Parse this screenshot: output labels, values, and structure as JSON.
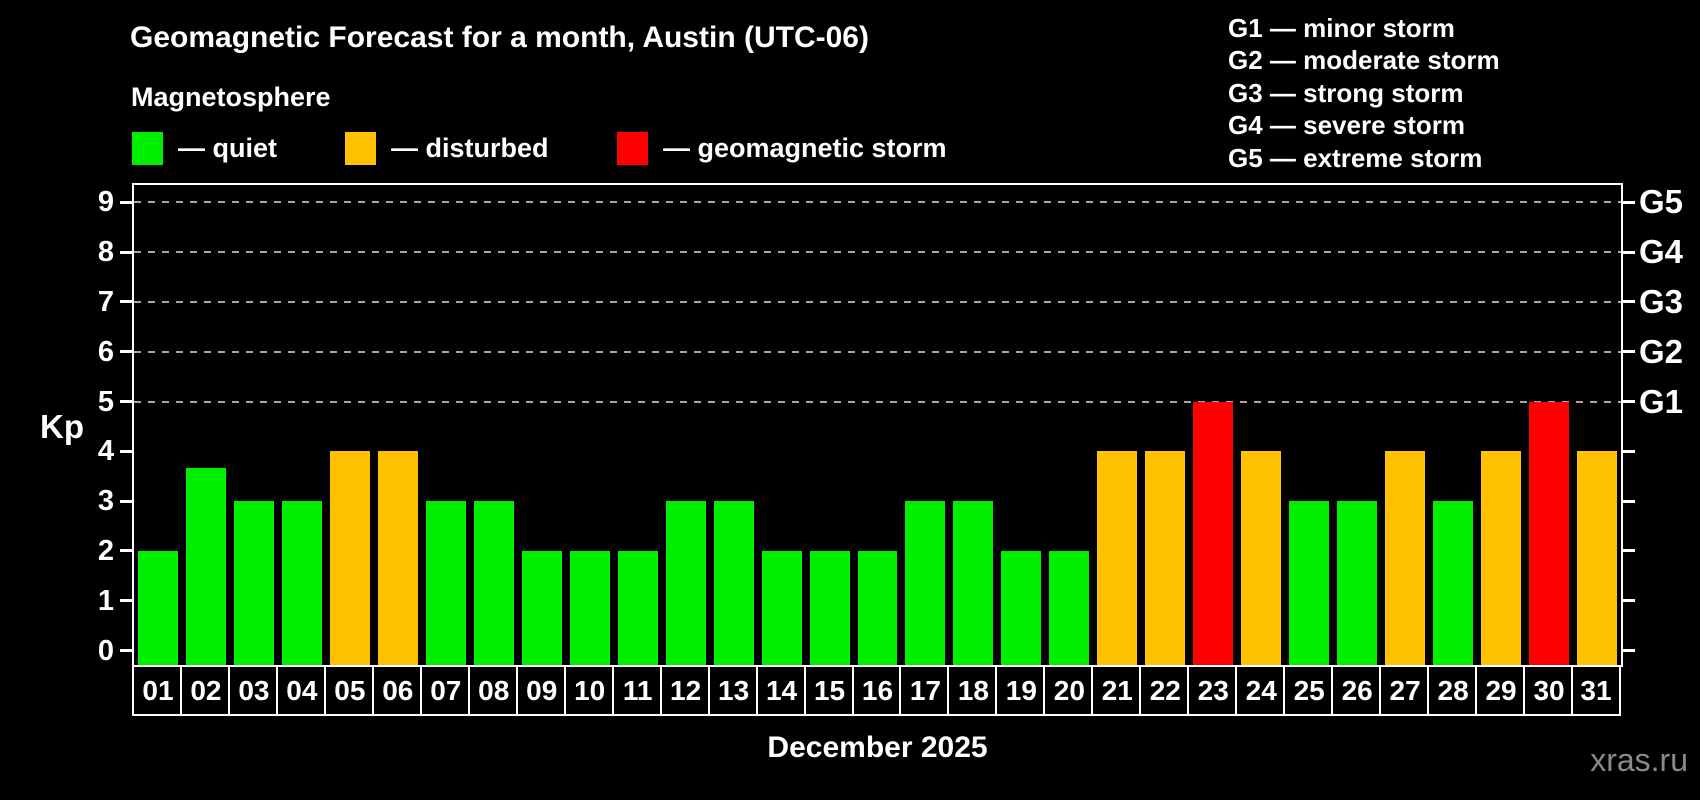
{
  "title": "Geomagnetic Forecast for a month, Austin (UTC-06)",
  "subtitle": "Magnetosphere",
  "legend": {
    "items": [
      {
        "name": "quiet",
        "label": "— quiet",
        "color": "#00ee00"
      },
      {
        "name": "disturbed",
        "label": "— disturbed",
        "color": "#ffc000"
      },
      {
        "name": "storm",
        "label": "— geomagnetic storm",
        "color": "#ff0000"
      }
    ]
  },
  "storm_scale_legend": [
    "G1 — minor storm",
    "G2 — moderate storm",
    "G3 — strong storm",
    "G4 — severe storm",
    "G5 — extreme storm"
  ],
  "chart_data": {
    "type": "bar",
    "title": "Geomagnetic Forecast for a month, Austin (UTC-06)",
    "xlabel": "December 2025",
    "ylabel": "Kp",
    "ylim": [
      0,
      9
    ],
    "grid": "dashed horizontal gridlines at Kp 5-9 only",
    "legend_position": "top-left",
    "categories": [
      "01",
      "02",
      "03",
      "04",
      "05",
      "06",
      "07",
      "08",
      "09",
      "10",
      "11",
      "12",
      "13",
      "14",
      "15",
      "16",
      "17",
      "18",
      "19",
      "20",
      "21",
      "22",
      "23",
      "24",
      "25",
      "26",
      "27",
      "28",
      "29",
      "30",
      "31"
    ],
    "values": [
      2,
      3.67,
      3,
      3,
      4,
      4,
      3,
      3,
      2,
      2,
      2,
      3,
      3,
      2,
      2,
      2,
      3,
      3,
      2,
      2,
      4,
      4,
      5,
      4,
      3,
      3,
      4,
      3,
      4,
      5,
      4
    ],
    "statuses": [
      "quiet",
      "quiet",
      "quiet",
      "quiet",
      "disturbed",
      "disturbed",
      "quiet",
      "quiet",
      "quiet",
      "quiet",
      "quiet",
      "quiet",
      "quiet",
      "quiet",
      "quiet",
      "quiet",
      "quiet",
      "quiet",
      "quiet",
      "quiet",
      "disturbed",
      "disturbed",
      "storm",
      "disturbed",
      "quiet",
      "quiet",
      "disturbed",
      "quiet",
      "disturbed",
      "storm",
      "disturbed"
    ],
    "y_ticks": [
      0,
      1,
      2,
      3,
      4,
      5,
      6,
      7,
      8,
      9
    ],
    "right_axis": [
      {
        "kp": 5,
        "label": "G1"
      },
      {
        "kp": 6,
        "label": "G2"
      },
      {
        "kp": 7,
        "label": "G3"
      },
      {
        "kp": 8,
        "label": "G4"
      },
      {
        "kp": 9,
        "label": "G5"
      }
    ],
    "gridlines_kp": [
      5,
      6,
      7,
      8,
      9
    ]
  },
  "footer": {
    "month_label": "December 2025",
    "watermark": "xras.ru"
  },
  "colors": {
    "background": "#000000",
    "bar_quiet": "#00ee00",
    "bar_disturbed": "#ffc000",
    "bar_storm": "#ff0000",
    "axis": "#ffffff",
    "grid": "#a6a6a6",
    "text": "#ffffff",
    "watermark": "#8a8a8a"
  }
}
